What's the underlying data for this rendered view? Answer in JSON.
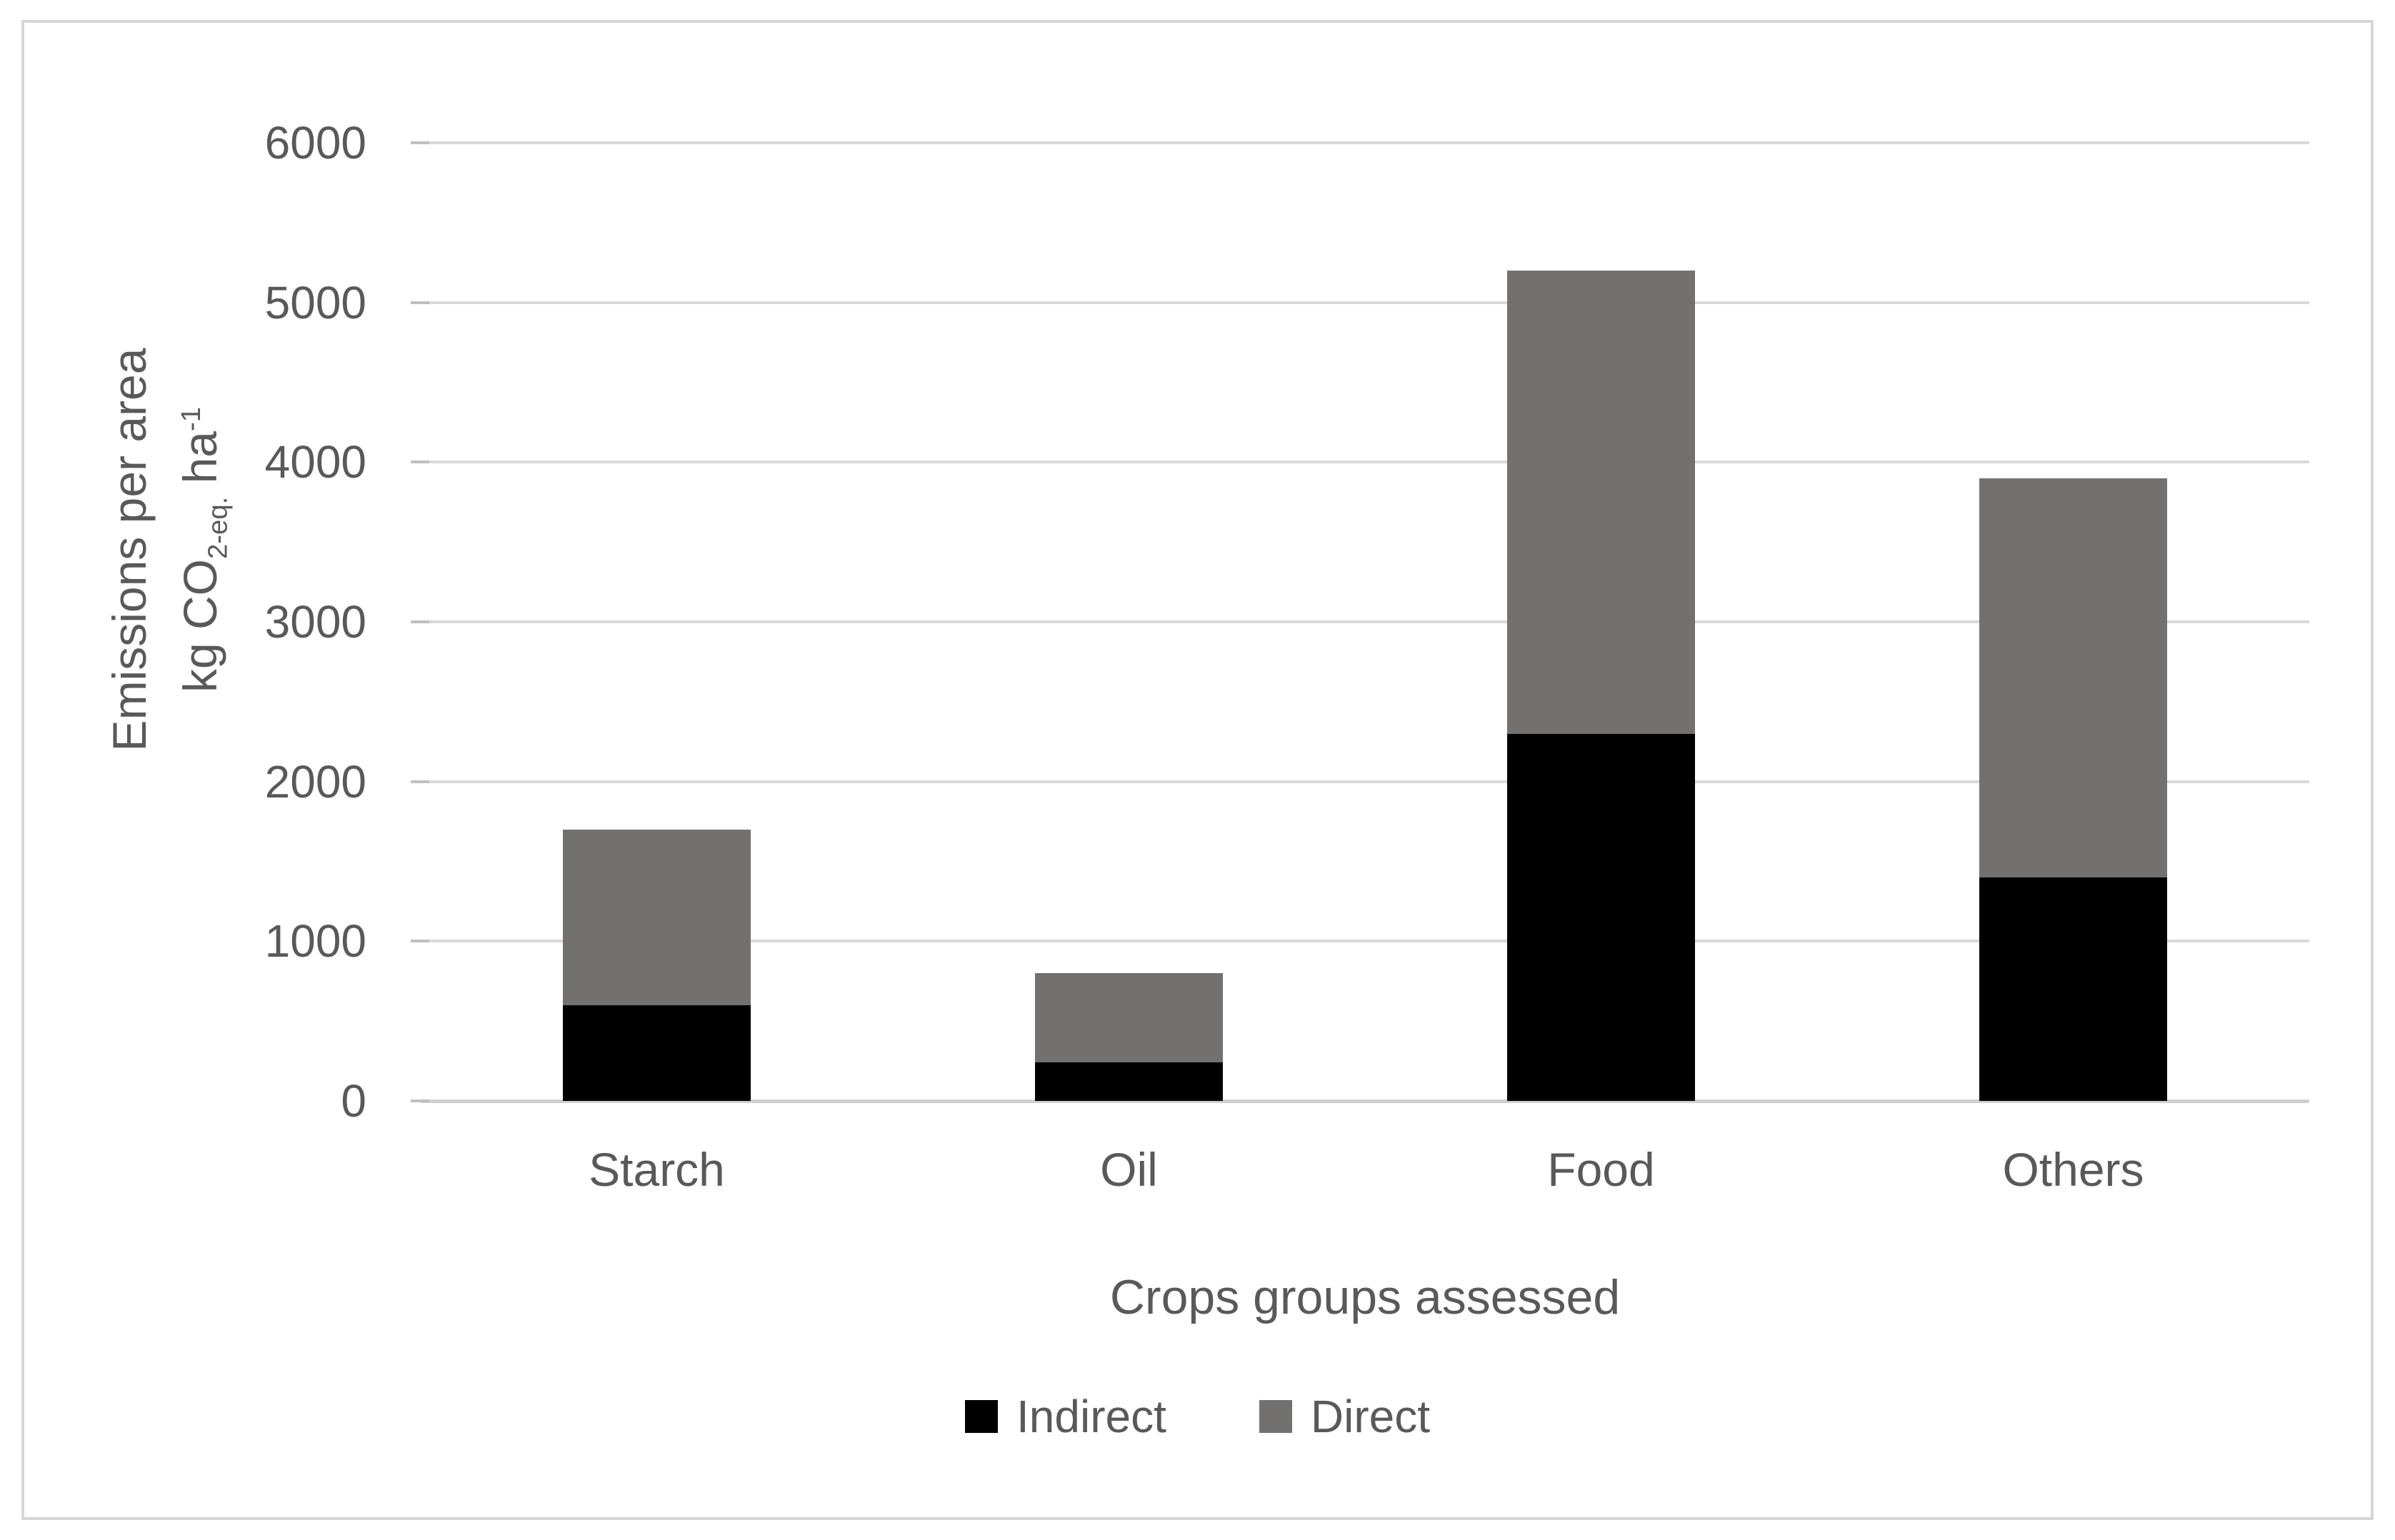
{
  "chart_data": {
    "type": "bar",
    "stacked": true,
    "title": "",
    "categories": [
      "Starch",
      "Oil",
      "Food",
      "Others"
    ],
    "series": [
      {
        "name": "Indirect",
        "color": "#000000",
        "values": [
          600,
          240,
          2300,
          1400
        ]
      },
      {
        "name": "Direct",
        "color": "#737070",
        "values": [
          1100,
          560,
          2900,
          2500
        ]
      }
    ],
    "stack_totals": [
      1700,
      800,
      5200,
      3900
    ],
    "xlabel": "Crops groups assessed",
    "ylabel": {
      "line1": "Emissions per area",
      "unit_prefix": "kg CO",
      "unit_sub": "2-eq.",
      "unit_mid": " ha",
      "unit_sup": "-1"
    },
    "ylim": [
      0,
      6000
    ],
    "yticks": [
      0,
      1000,
      2000,
      3000,
      4000,
      5000,
      6000
    ],
    "grid": true,
    "legend_position": "bottom",
    "colors": {
      "indirect": "#000000",
      "direct": "#737070",
      "gridline": "#d9d9d9",
      "axis_line": "#cfcfcf",
      "tick": "#bfbfbf",
      "text": "#595959",
      "frame_border": "#d6d6d6",
      "background": "#ffffff"
    }
  }
}
